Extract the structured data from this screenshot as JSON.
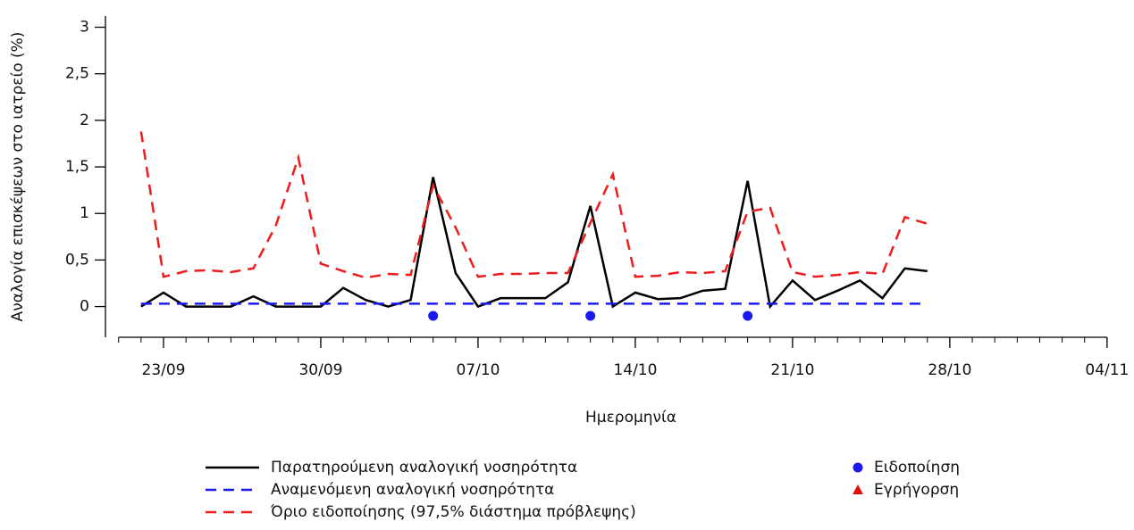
{
  "chart_data": {
    "type": "line",
    "x_label": "Ημερομηνία",
    "y_label": "Αναλογία επισκέψεων στο ιατρείο (%)",
    "x": [
      "22/09",
      "23/09",
      "24/09",
      "25/09",
      "26/09",
      "27/09",
      "28/09",
      "29/09",
      "30/09",
      "01/10",
      "02/10",
      "03/10",
      "04/10",
      "05/10",
      "06/10",
      "07/10",
      "08/10",
      "09/10",
      "10/10",
      "11/10",
      "12/10",
      "13/10",
      "14/10",
      "15/10",
      "16/10",
      "17/10",
      "18/10",
      "19/10",
      "20/10",
      "21/10",
      "22/10",
      "23/10",
      "24/10",
      "25/10",
      "26/10",
      "27/10"
    ],
    "xlim": [
      "21/09",
      "04/11"
    ],
    "xticks": [
      "23/09",
      "30/09",
      "07/10",
      "14/10",
      "21/10",
      "28/10",
      "04/11"
    ],
    "ylim": [
      -0.33,
      3.12
    ],
    "yticks": [
      0,
      {
        "value": 0.5,
        "label": "0,5"
      },
      1,
      {
        "value": 1.5,
        "label": "1,5"
      },
      2,
      {
        "value": 2.5,
        "label": "2,5"
      },
      3
    ],
    "series": [
      {
        "name": "Παρατηρούμενη αναλογική νοσηρότητα",
        "color": "#000000",
        "dashed": false,
        "values": [
          0.0,
          0.15,
          0,
          0,
          0,
          0.11,
          0,
          0,
          0,
          0.2,
          0.07,
          0,
          0.07,
          1.39,
          0.36,
          0.0,
          0.09,
          0.09,
          0.09,
          0.26,
          1.08,
          0,
          0.15,
          0.08,
          0.09,
          0.17,
          0.19,
          1.35,
          0,
          0.28,
          0.07,
          0.17,
          0.28,
          0.09,
          0.41,
          0.38
        ]
      },
      {
        "name": "Αναμενόμενη αναλογική νοσηρότητα",
        "color": "#1a1aee",
        "dashed": true,
        "values": [
          0.03,
          0.03,
          0.03,
          0.03,
          0.03,
          0.03,
          0.03,
          0.03,
          0.03,
          0.03,
          0.03,
          0.03,
          0.03,
          0.03,
          0.03,
          0.03,
          0.03,
          0.03,
          0.03,
          0.03,
          0.03,
          0.03,
          0.03,
          0.03,
          0.03,
          0.03,
          0.03,
          0.03,
          0.03,
          0.03,
          0.03,
          0.03,
          0.03,
          0.03,
          0.03,
          0.03
        ]
      },
      {
        "name": "Όριο ειδοποίησης (97,5% διάστημα πρόβλεψης)",
        "color": "#ee1c1c",
        "dashed": true,
        "values": [
          1.88,
          0.32,
          0.38,
          0.39,
          0.37,
          0.41,
          0.87,
          1.6,
          0.46,
          0.38,
          0.31,
          0.35,
          0.34,
          1.3,
          0.85,
          0.32,
          0.35,
          0.35,
          0.36,
          0.36,
          0.9,
          1.42,
          0.32,
          0.33,
          0.37,
          0.36,
          0.38,
          1.02,
          1.06,
          0.37,
          0.32,
          0.34,
          0.37,
          0.35,
          0.96,
          0.89
        ]
      }
    ],
    "points": [
      {
        "name": "Ειδοποίηση",
        "color": "#1a1aee",
        "shape": "circle",
        "x": [
          "05/10",
          "12/10",
          "19/10"
        ],
        "values": [
          -0.1,
          -0.1,
          -0.1
        ]
      },
      {
        "name": "Εγρήγορση",
        "color": "#e01010",
        "shape": "triangle",
        "x": [],
        "values": []
      }
    ]
  }
}
